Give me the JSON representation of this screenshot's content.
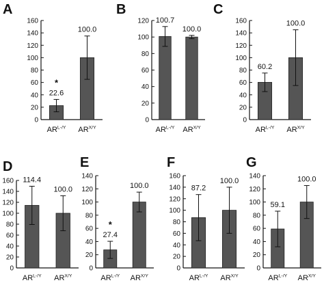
{
  "chart_data": [
    {
      "type": "bar",
      "panel_label": "A",
      "categories": [
        "AR^{L-/Y}",
        "AR^{X/Y}"
      ],
      "values": [
        22.6,
        100.0
      ],
      "errors": [
        10,
        35
      ],
      "value_labels": [
        "22.6",
        "100.0"
      ],
      "annotations": [
        "*",
        ""
      ],
      "ylim": [
        0,
        160
      ],
      "yticks": [
        0,
        20,
        40,
        60,
        80,
        100,
        120,
        140,
        160
      ],
      "bar_color": "#555555"
    },
    {
      "type": "bar",
      "panel_label": "B",
      "categories": [
        "AR^{L-/Y}",
        "AR^{X/Y}"
      ],
      "values": [
        100.7,
        100.0
      ],
      "errors": [
        12,
        2
      ],
      "value_labels": [
        "100.7",
        "100.0"
      ],
      "annotations": [
        "",
        ""
      ],
      "ylim": [
        0,
        120
      ],
      "yticks": [
        0,
        20,
        40,
        60,
        80,
        100,
        120
      ],
      "bar_color": "#555555"
    },
    {
      "type": "bar",
      "panel_label": "C",
      "categories": [
        "AR^{L-/Y}",
        "AR^{X/Y}"
      ],
      "values": [
        60.2,
        100.0
      ],
      "errors": [
        15,
        45
      ],
      "value_labels": [
        "60.2",
        "100.0"
      ],
      "annotations": [
        "",
        ""
      ],
      "ylim": [
        0,
        160
      ],
      "yticks": [
        0,
        20,
        40,
        60,
        80,
        100,
        120,
        140,
        160
      ],
      "bar_color": "#555555"
    },
    {
      "type": "bar",
      "panel_label": "D",
      "categories": [
        "AR^{L-/Y}",
        "AR^{X/Y}"
      ],
      "values": [
        114.4,
        100.0
      ],
      "errors": [
        35,
        32
      ],
      "value_labels": [
        "114.4",
        "100.0"
      ],
      "annotations": [
        "",
        ""
      ],
      "ylim": [
        0,
        160
      ],
      "yticks": [
        0,
        20,
        40,
        60,
        80,
        100,
        120,
        140,
        160
      ],
      "bar_color": "#555555"
    },
    {
      "type": "bar",
      "panel_label": "E",
      "categories": [
        "AR^{L-/Y}",
        "AR^{X/Y}"
      ],
      "values": [
        27.4,
        100.0
      ],
      "errors": [
        13,
        15
      ],
      "value_labels": [
        "27.4",
        "100.0"
      ],
      "annotations": [
        "*",
        ""
      ],
      "ylim": [
        0,
        140
      ],
      "yticks": [
        0,
        20,
        40,
        60,
        80,
        100,
        120,
        140
      ],
      "bar_color": "#555555"
    },
    {
      "type": "bar",
      "panel_label": "F",
      "categories": [
        "AR^{L-/Y}",
        "AR^{X/Y}"
      ],
      "values": [
        87.2,
        100.0
      ],
      "errors": [
        40,
        40
      ],
      "value_labels": [
        "87.2",
        "100.0"
      ],
      "annotations": [
        "",
        ""
      ],
      "ylim": [
        0,
        160
      ],
      "yticks": [
        0,
        20,
        40,
        60,
        80,
        100,
        120,
        140,
        160
      ],
      "bar_color": "#555555"
    },
    {
      "type": "bar",
      "panel_label": "G",
      "categories": [
        "AR^{L-/Y}",
        "AR^{X/Y}"
      ],
      "values": [
        59.1,
        100.0
      ],
      "errors": [
        27,
        25
      ],
      "value_labels": [
        "59.1",
        "100.0"
      ],
      "annotations": [
        "",
        ""
      ],
      "ylim": [
        0,
        140
      ],
      "yticks": [
        0,
        20,
        40,
        60,
        80,
        100,
        120,
        140
      ],
      "bar_color": "#555555"
    }
  ]
}
